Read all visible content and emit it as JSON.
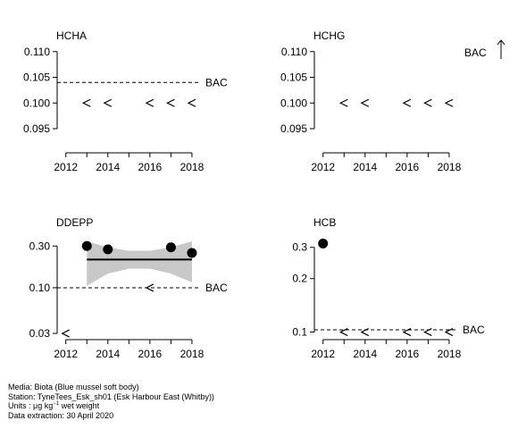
{
  "chart_data": [
    {
      "type": "scatter",
      "title": "HCHA",
      "x_ticks": [
        "2012",
        "2014",
        "2016",
        "2018"
      ],
      "y_ticks": [
        "0.110",
        "0.105",
        "0.100",
        "0.095"
      ],
      "ylim": [
        0.091,
        0.111
      ],
      "xlim": [
        2011.8,
        2018.3
      ],
      "reference_line": {
        "label": "BAC",
        "value": 0.104
      },
      "less_than": [
        {
          "x": 2013,
          "y": 0.1
        },
        {
          "x": 2014,
          "y": 0.1
        },
        {
          "x": 2016,
          "y": 0.1
        },
        {
          "x": 2017,
          "y": 0.1
        },
        {
          "x": 2018,
          "y": 0.1
        }
      ]
    },
    {
      "type": "scatter",
      "title": "HCHG",
      "x_ticks": [
        "2012",
        "2014",
        "2016",
        "2018"
      ],
      "y_ticks": [
        "0.110",
        "0.105",
        "0.100",
        "0.095"
      ],
      "ylim": [
        0.091,
        0.111
      ],
      "xlim": [
        2011.8,
        2018.3
      ],
      "reference_line": {
        "label": "BAC",
        "arrow": "up",
        "note": "BAC above plotted range"
      },
      "less_than": [
        {
          "x": 2013,
          "y": 0.1
        },
        {
          "x": 2014,
          "y": 0.1
        },
        {
          "x": 2016,
          "y": 0.1
        },
        {
          "x": 2017,
          "y": 0.1
        },
        {
          "x": 2018,
          "y": 0.1
        }
      ]
    },
    {
      "type": "scatter",
      "title": "DDEPP",
      "scale": "log",
      "x_ticks": [
        "2012",
        "2014",
        "2016",
        "2018"
      ],
      "y_ticks": [
        "0.30",
        "0.10",
        "0.03"
      ],
      "ylim": [
        0.028,
        0.42
      ],
      "xlim": [
        2011.8,
        2018.3
      ],
      "reference_line": {
        "label": "BAC",
        "value": 0.1
      },
      "points": [
        {
          "x": 2013,
          "y": 0.3
        },
        {
          "x": 2014,
          "y": 0.275
        },
        {
          "x": 2017,
          "y": 0.29
        },
        {
          "x": 2018,
          "y": 0.25
        }
      ],
      "less_than": [
        {
          "x": 2012,
          "y": 0.03
        },
        {
          "x": 2016,
          "y": 0.1
        }
      ],
      "trend": {
        "from": 2013,
        "to": 2018,
        "value": 0.21
      },
      "confidence_band": {
        "x": [
          2013,
          2014,
          2015,
          2016,
          2017,
          2018
        ],
        "upper": [
          0.34,
          0.29,
          0.265,
          0.265,
          0.29,
          0.34
        ],
        "lower": [
          0.105,
          0.145,
          0.165,
          0.165,
          0.145,
          0.115
        ]
      }
    },
    {
      "type": "scatter",
      "title": "HCB",
      "scale": "log",
      "x_ticks": [
        "2012",
        "2014",
        "2016",
        "2018"
      ],
      "y_ticks": [
        "0.3",
        "0.2",
        "0.1"
      ],
      "ylim": [
        0.095,
        0.36
      ],
      "xlim": [
        2011.8,
        2018.3
      ],
      "reference_line": {
        "label": "BAC",
        "value": 0.103
      },
      "points": [
        {
          "x": 2012,
          "y": 0.315
        }
      ],
      "less_than": [
        {
          "x": 2013,
          "y": 0.1
        },
        {
          "x": 2014,
          "y": 0.1
        },
        {
          "x": 2016,
          "y": 0.1
        },
        {
          "x": 2017,
          "y": 0.1
        },
        {
          "x": 2018,
          "y": 0.1
        }
      ]
    }
  ],
  "footer": {
    "media": "Media: Biota (Blue mussel soft body)",
    "station": "Station: TyneTees_Esk_sh01 (Esk Harbour East (Whitby))",
    "units_prefix": "Units : ",
    "units_mu": "μg kg",
    "units_sup": "−1",
    "units_suffix": " wet weight",
    "extraction": "Data extraction: 30 April 2020"
  }
}
